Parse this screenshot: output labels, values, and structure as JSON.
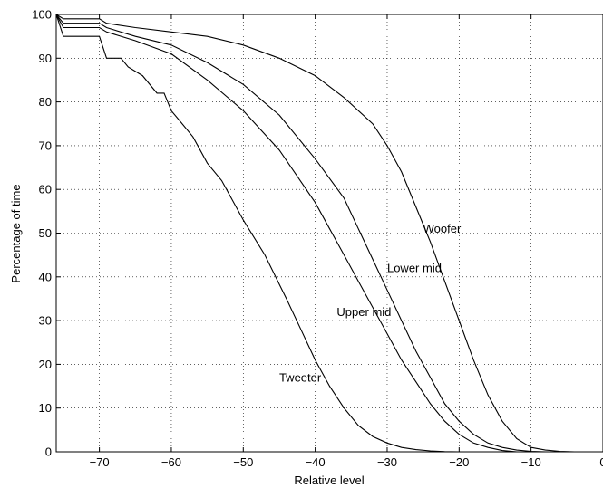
{
  "chart_data": {
    "type": "line",
    "title": "",
    "xlabel": "Relative level",
    "ylabel": "Percentage of time",
    "xlim": [
      -76,
      0
    ],
    "ylim": [
      0,
      100
    ],
    "grid": true,
    "x_ticks": [
      -70,
      -60,
      -50,
      -40,
      -30,
      -20,
      -10,
      0
    ],
    "x_tick_labels": [
      "−70",
      "−60",
      "−50",
      "−40",
      "−30",
      "−20",
      "−10",
      "0"
    ],
    "y_ticks": [
      0,
      10,
      20,
      30,
      40,
      50,
      60,
      70,
      80,
      90,
      100
    ],
    "y_tick_labels": [
      "0",
      "10",
      "20",
      "30",
      "40",
      "50",
      "60",
      "70",
      "80",
      "90",
      "100"
    ],
    "series": [
      {
        "name": "Woofer",
        "label_at": [
          -25,
          51
        ],
        "x": [
          -76,
          -75,
          -70,
          -69,
          -65,
          -60,
          -55,
          -50,
          -45,
          -40,
          -36,
          -32,
          -30,
          -28,
          -26,
          -24,
          -22,
          -20,
          -18,
          -16,
          -14,
          -12,
          -10,
          -8,
          -6,
          -4,
          0
        ],
        "y": [
          100,
          99,
          99,
          98,
          97,
          96,
          95,
          93,
          90,
          86,
          81,
          75,
          70,
          64,
          56,
          48,
          39,
          30,
          21,
          13,
          7,
          3,
          1,
          0.4,
          0.1,
          0,
          0
        ]
      },
      {
        "name": "Lower mid",
        "label_at": [
          -30,
          42
        ],
        "x": [
          -76,
          -75,
          -70,
          -69,
          -65,
          -60,
          -55,
          -50,
          -45,
          -40,
          -36,
          -34,
          -32,
          -30,
          -28,
          -26,
          -24,
          -22,
          -20,
          -18,
          -16,
          -14,
          -12,
          -10,
          -8,
          0
        ],
        "y": [
          100,
          98,
          98,
          97,
          95,
          93,
          89,
          84,
          77,
          67,
          58,
          51,
          44,
          37,
          30,
          23,
          17,
          11,
          7,
          4,
          2,
          1,
          0.4,
          0.1,
          0,
          0
        ]
      },
      {
        "name": "Upper mid",
        "label_at": [
          -37,
          32
        ],
        "x": [
          -76,
          -75,
          -70,
          -69,
          -65,
          -60,
          -55,
          -50,
          -45,
          -40,
          -38,
          -36,
          -34,
          -32,
          -30,
          -28,
          -26,
          -24,
          -22,
          -20,
          -18,
          -16,
          -14,
          -12,
          0
        ],
        "y": [
          100,
          97,
          97,
          96,
          94,
          91,
          85,
          78,
          69,
          57,
          51,
          45,
          39,
          33,
          27,
          21,
          16,
          11,
          7,
          4,
          2,
          1,
          0.3,
          0,
          0
        ]
      },
      {
        "name": "Tweeter",
        "label_at": [
          -45,
          17
        ],
        "x": [
          -76,
          -75,
          -70,
          -69,
          -67,
          -66,
          -64,
          -62,
          -61,
          -60,
          -59,
          -57,
          -55,
          -53,
          -50,
          -47,
          -44,
          -42,
          -40,
          -38,
          -36,
          -34,
          -32,
          -30,
          -28,
          -26,
          -24,
          -22,
          -20,
          0
        ],
        "y": [
          100,
          95,
          95,
          90,
          90,
          88,
          86,
          82,
          82,
          78,
          76,
          72,
          66,
          62,
          53,
          45,
          35,
          28,
          21,
          15,
          10,
          6,
          3.5,
          2,
          1,
          0.5,
          0.2,
          0.05,
          0,
          0
        ]
      }
    ]
  }
}
